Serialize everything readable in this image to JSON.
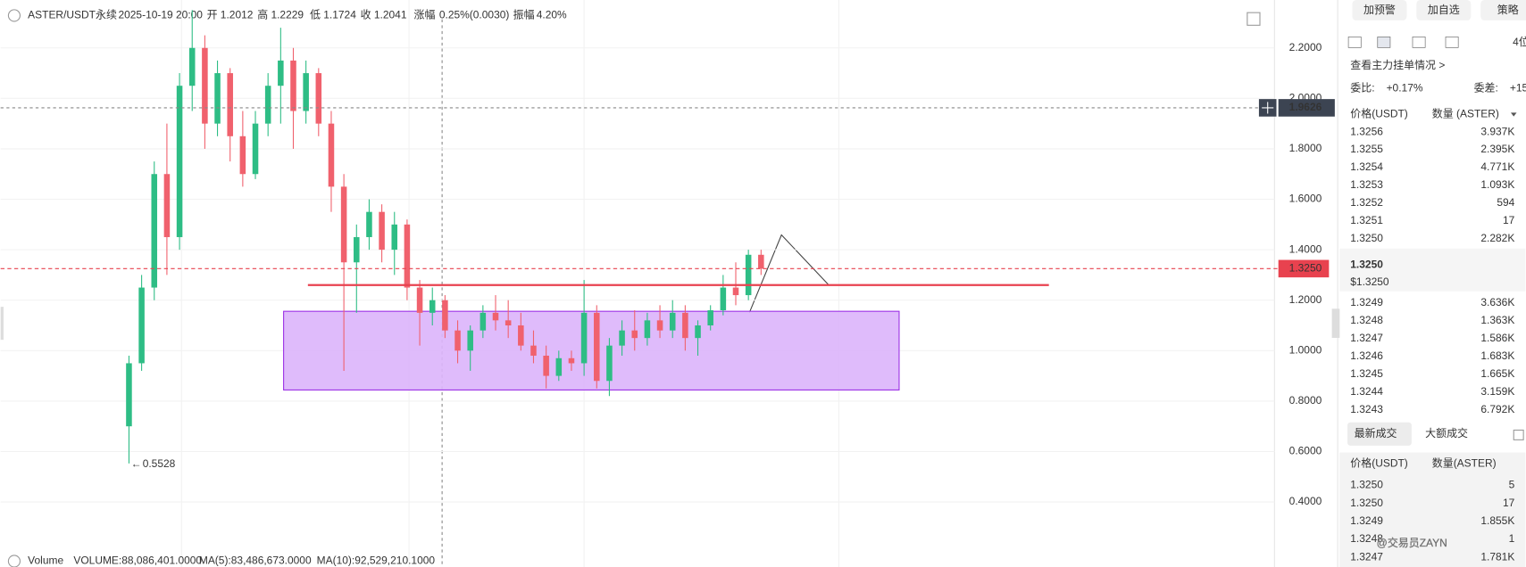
{
  "header": {
    "symbol": "ASTER/USDT永续",
    "datetime": "2025-10-19 20:00",
    "fields": [
      {
        "label": "开",
        "value": "1.2012"
      },
      {
        "label": "高",
        "value": "1.2229"
      },
      {
        "label": "低",
        "value": "1.1724"
      },
      {
        "label": "收",
        "value": "1.2041"
      },
      {
        "label": "涨幅",
        "value": "0.25%(0.0030)"
      },
      {
        "label": "振幅",
        "value": "4.20%"
      }
    ]
  },
  "chart": {
    "type": "candlestick",
    "ylim": [
      0.2,
      2.39
    ],
    "yticks": [
      {
        "value": 2.2,
        "label": "2.2000"
      },
      {
        "value": 2.0,
        "label": "2.0000"
      },
      {
        "value": 1.8,
        "label": "1.8000"
      },
      {
        "value": 1.6,
        "label": "1.6000"
      },
      {
        "value": 1.4,
        "label": "1.4000"
      },
      {
        "value": 1.2,
        "label": "1.2000"
      },
      {
        "value": 1.0,
        "label": "1.0000"
      },
      {
        "value": 0.8,
        "label": "0.8000"
      },
      {
        "value": 0.6,
        "label": "0.6000"
      },
      {
        "value": 0.4,
        "label": "0.4000"
      }
    ],
    "up_color": "#2ebd85",
    "down_color": "#f0616d",
    "candles": [
      [
        0.7,
        0.98,
        0.5528,
        0.95
      ],
      [
        0.95,
        1.3,
        0.92,
        1.25
      ],
      [
        1.25,
        1.75,
        1.2,
        1.7
      ],
      [
        1.7,
        1.9,
        1.3,
        1.45
      ],
      [
        1.45,
        2.1,
        1.4,
        2.05
      ],
      [
        2.05,
        2.35,
        1.95,
        2.2
      ],
      [
        2.2,
        2.25,
        1.8,
        1.9
      ],
      [
        1.9,
        2.15,
        1.85,
        2.1
      ],
      [
        2.1,
        2.12,
        1.75,
        1.85
      ],
      [
        1.85,
        1.95,
        1.65,
        1.7
      ],
      [
        1.7,
        1.95,
        1.68,
        1.9
      ],
      [
        1.9,
        2.1,
        1.85,
        2.05
      ],
      [
        2.05,
        2.28,
        1.9,
        2.15
      ],
      [
        2.15,
        2.2,
        1.8,
        1.95
      ],
      [
        1.95,
        2.15,
        1.9,
        2.1
      ],
      [
        2.1,
        2.12,
        1.85,
        1.9
      ],
      [
        1.9,
        1.95,
        1.55,
        1.65
      ],
      [
        1.65,
        1.7,
        0.92,
        1.35
      ],
      [
        1.35,
        1.5,
        1.15,
        1.45
      ],
      [
        1.45,
        1.6,
        1.4,
        1.55
      ],
      [
        1.55,
        1.58,
        1.35,
        1.4
      ],
      [
        1.4,
        1.55,
        1.3,
        1.5
      ],
      [
        1.5,
        1.52,
        1.2,
        1.25
      ],
      [
        1.25,
        1.28,
        1.02,
        1.15
      ],
      [
        1.15,
        1.25,
        1.1,
        1.2
      ],
      [
        1.2,
        1.22,
        1.05,
        1.08
      ],
      [
        1.08,
        1.12,
        0.95,
        1.0
      ],
      [
        1.0,
        1.1,
        0.92,
        1.08
      ],
      [
        1.08,
        1.18,
        1.05,
        1.15
      ],
      [
        1.15,
        1.22,
        1.08,
        1.12
      ],
      [
        1.12,
        1.2,
        1.05,
        1.1
      ],
      [
        1.1,
        1.15,
        1.0,
        1.02
      ],
      [
        1.02,
        1.08,
        0.95,
        0.98
      ],
      [
        0.98,
        1.02,
        0.85,
        0.9
      ],
      [
        0.9,
        1.0,
        0.88,
        0.97
      ],
      [
        0.97,
        1.0,
        0.92,
        0.95
      ],
      [
        0.95,
        1.28,
        0.9,
        1.15
      ],
      [
        1.15,
        1.18,
        0.85,
        0.88
      ],
      [
        0.88,
        1.05,
        0.82,
        1.02
      ],
      [
        1.02,
        1.12,
        0.98,
        1.08
      ],
      [
        1.08,
        1.16,
        1.0,
        1.05
      ],
      [
        1.05,
        1.15,
        1.02,
        1.12
      ],
      [
        1.12,
        1.18,
        1.05,
        1.08
      ],
      [
        1.08,
        1.2,
        1.05,
        1.15
      ],
      [
        1.15,
        1.18,
        1.0,
        1.05
      ],
      [
        1.05,
        1.12,
        0.98,
        1.1
      ],
      [
        1.1,
        1.18,
        1.08,
        1.16
      ],
      [
        1.16,
        1.3,
        1.14,
        1.25
      ],
      [
        1.25,
        1.35,
        1.18,
        1.22
      ],
      [
        1.22,
        1.4,
        1.2,
        1.38
      ],
      [
        1.38,
        1.4,
        1.3,
        1.325
      ]
    ],
    "crosshair_price": {
      "value": 1.9626,
      "label": "1.9626"
    },
    "last_price": {
      "value": 1.325,
      "label": "1.3250"
    },
    "low_marker": {
      "value": 0.5528,
      "label": "0.5528"
    },
    "zone": {
      "top": 1.156,
      "bottom": 0.844
    },
    "resistance": 1.26,
    "volume": {
      "label": "Volume",
      "volume": "VOLUME:88,086,401.0000",
      "ma5": "MA(5):83,486,673.0000",
      "ma10": "MA(10):92,529,210.1000"
    }
  },
  "panel": {
    "buttons": [
      "加预警",
      "加自选",
      "策略"
    ],
    "precision": "4位",
    "depth_link": "查看主力挂单情况 >",
    "ratio_label": "委比:",
    "ratio": "+0.17%",
    "diff_label": "委差:",
    "diff": "+15",
    "book_headers": [
      "价格(USDT)",
      "数量 (ASTER)"
    ],
    "asks": [
      [
        "1.3256",
        "3.937K"
      ],
      [
        "1.3255",
        "2.395K"
      ],
      [
        "1.3254",
        "4.771K"
      ],
      [
        "1.3253",
        "1.093K"
      ],
      [
        "1.3252",
        "594"
      ],
      [
        "1.3251",
        "17"
      ],
      [
        "1.3250",
        "2.282K"
      ]
    ],
    "mid_price": "1.3250",
    "mid_usd": "$1.3250",
    "bids": [
      [
        "1.3249",
        "3.636K"
      ],
      [
        "1.3248",
        "1.363K"
      ],
      [
        "1.3247",
        "1.586K"
      ],
      [
        "1.3246",
        "1.683K"
      ],
      [
        "1.3245",
        "1.665K"
      ],
      [
        "1.3244",
        "3.159K"
      ],
      [
        "1.3243",
        "6.792K"
      ]
    ],
    "tabs": [
      "最新成交",
      "大额成交"
    ],
    "trade_headers": [
      "价格(USDT)",
      "数量(ASTER)"
    ],
    "trades": [
      {
        "price": "1.3250",
        "qty": "5",
        "color": "#e8424f"
      },
      {
        "price": "1.3250",
        "qty": "17",
        "color": "#1aa672"
      },
      {
        "price": "1.3249",
        "qty": "1.855K",
        "color": "#1aa672"
      },
      {
        "price": "1.3248",
        "qty": "1",
        "color": "#1aa672"
      },
      {
        "price": "1.3247",
        "qty": "1.781K",
        "color": "#e8424f"
      }
    ],
    "watermark": "@交易员ZAYN"
  }
}
